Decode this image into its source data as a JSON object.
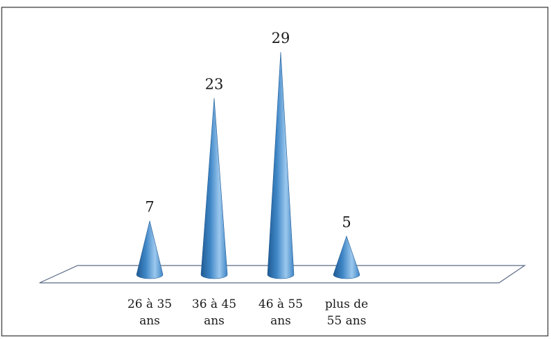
{
  "chart_data": {
    "type": "bar",
    "bar_shape": "cone",
    "categories": [
      [
        "26 à 35",
        "ans"
      ],
      [
        "36 à 45",
        "ans"
      ],
      [
        "46 à 55",
        "ans"
      ],
      [
        "plus de",
        "55 ans"
      ]
    ],
    "values": [
      7,
      23,
      29,
      5
    ],
    "title": "",
    "xlabel": "",
    "ylabel": "",
    "ylim": [
      0,
      29
    ],
    "grid": false,
    "legend": "none",
    "data_labels": true
  },
  "colors": {
    "bar": "#3f86c6",
    "bar_dark": "#1f5a93",
    "bar_light": "#9cc8ee",
    "floor_stroke": "#5a6a86",
    "frame_stroke": "#555555"
  }
}
